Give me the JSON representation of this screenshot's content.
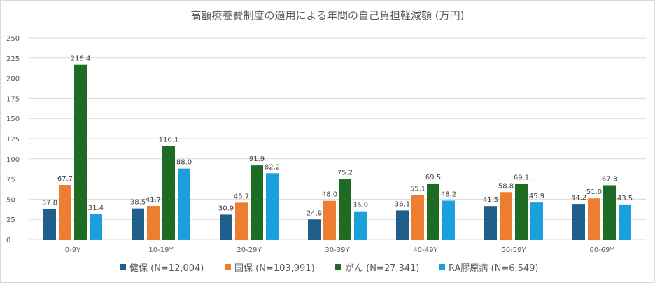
{
  "chart_data": {
    "type": "bar",
    "title": "高額療養費制度の適用による年間の自己負担軽減額 (万円)",
    "xlabel": "",
    "ylabel": "",
    "ylim": [
      0,
      250
    ],
    "yticks": [
      0,
      25,
      50,
      75,
      100,
      125,
      150,
      175,
      200,
      225,
      250
    ],
    "grid": true,
    "legend_position": "bottom",
    "categories": [
      "0-9Y",
      "10-19Y",
      "20-29Y",
      "30-39Y",
      "40-49Y",
      "50-59Y",
      "60-69Y"
    ],
    "series": [
      {
        "name": "健保 (N=12,004)",
        "color": "#1F5F8B",
        "values": [
          37.8,
          38.5,
          30.9,
          24.9,
          36.1,
          41.5,
          44.2
        ]
      },
      {
        "name": "国保 (N=103,991)",
        "color": "#ED7D31",
        "values": [
          67.7,
          41.7,
          45.7,
          48.0,
          55.1,
          58.8,
          51.0
        ]
      },
      {
        "name": "がん (N=27,341)",
        "color": "#1E6B24",
        "values": [
          216.4,
          116.1,
          91.9,
          75.2,
          69.5,
          69.1,
          67.3
        ]
      },
      {
        "name": "RA膠原病 (N=6,549)",
        "color": "#1CA0DC",
        "values": [
          31.4,
          88.0,
          82.2,
          35.0,
          48.2,
          45.9,
          43.5
        ]
      }
    ]
  }
}
